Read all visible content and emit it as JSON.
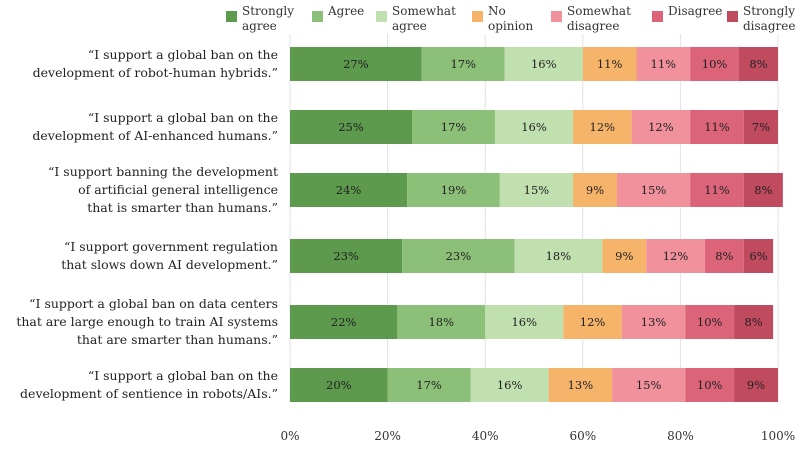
{
  "chart_data": {
    "type": "bar",
    "orientation": "horizontal-stacked-100",
    "title": "",
    "xlabel": "",
    "ylabel": "",
    "xlim": [
      0,
      100
    ],
    "x_ticks": [
      "0%",
      "20%",
      "40%",
      "60%",
      "80%",
      "100%"
    ],
    "legend_position": "top",
    "categories": [
      [
        "“I support a global ban on the",
        "development of robot-human hybrids.”"
      ],
      [
        "“I support a global ban on the",
        "development of AI-enhanced humans.”"
      ],
      [
        "“I support banning the development",
        "of artificial general intelligence",
        "that is smarter than humans.”"
      ],
      [
        "“I support government regulation",
        "that slows down AI development.”"
      ],
      [
        "“I support a global ban on data centers",
        "that are large enough to train AI systems",
        "that are smarter than humans.”"
      ],
      [
        "“I support a global ban on the",
        "development of sentience in robots/AIs.”"
      ]
    ],
    "series": [
      {
        "name": [
          "Strongly",
          "agree"
        ],
        "color": "#5e9a4d",
        "values": [
          27,
          25,
          24,
          23,
          22,
          20
        ]
      },
      {
        "name": [
          "Agree"
        ],
        "color": "#8cc079",
        "values": [
          17,
          17,
          19,
          23,
          18,
          17
        ]
      },
      {
        "name": [
          "Somewhat",
          "agree"
        ],
        "color": "#c1e0b0",
        "values": [
          16,
          16,
          15,
          18,
          16,
          16
        ]
      },
      {
        "name": [
          "No",
          "opinion"
        ],
        "color": "#f6b36a",
        "values": [
          11,
          12,
          9,
          9,
          12,
          13
        ]
      },
      {
        "name": [
          "Somewhat",
          "disagree"
        ],
        "color": "#f0919c",
        "values": [
          11,
          12,
          15,
          12,
          13,
          15
        ]
      },
      {
        "name": [
          "Disagree"
        ],
        "color": "#db6478",
        "values": [
          10,
          11,
          11,
          8,
          10,
          10
        ]
      },
      {
        "name": [
          "Strongly",
          "disagree"
        ],
        "color": "#c04a5e",
        "values": [
          8,
          7,
          8,
          6,
          8,
          9
        ]
      }
    ]
  }
}
